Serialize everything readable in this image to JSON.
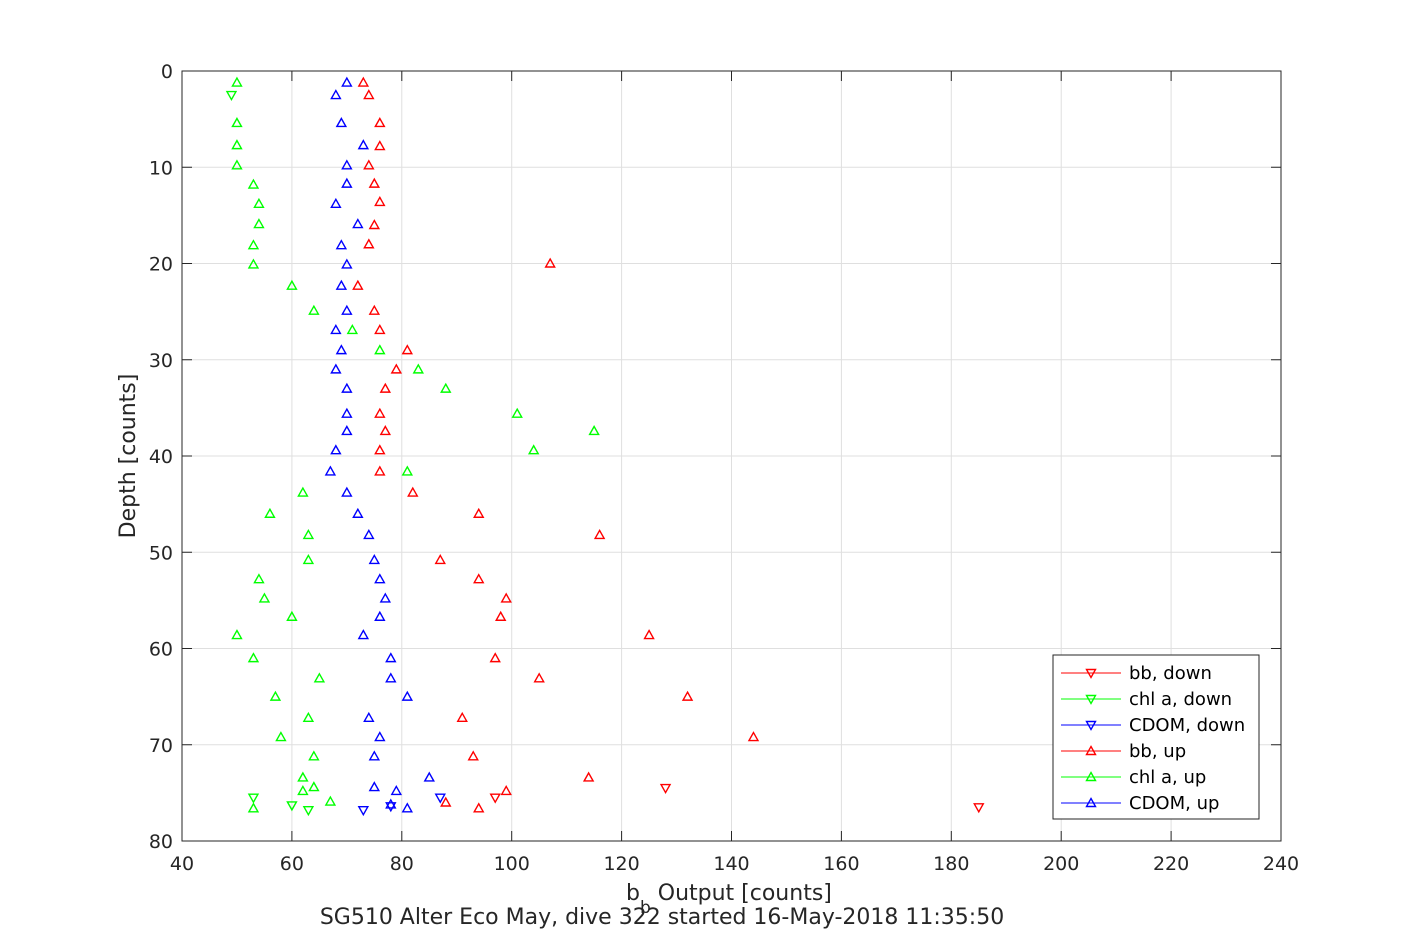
{
  "chart_data": {
    "type": "scatter",
    "xlabel_main": "b",
    "xlabel_sub": "b",
    "xlabel_rest": " Output [counts]",
    "ylabel": "Depth [counts]",
    "caption": "SG510 Alter Eco May, dive 322 started 16-May-2018 11:35:50",
    "xlim": [
      40,
      240
    ],
    "ylim": [
      0,
      80
    ],
    "y_reversed": true,
    "grid": true,
    "x_ticks": [
      40,
      60,
      80,
      100,
      120,
      140,
      160,
      180,
      200,
      220,
      240
    ],
    "y_ticks": [
      0,
      10,
      20,
      30,
      40,
      50,
      60,
      70,
      80
    ],
    "legend_position": "bottom-right",
    "series": [
      {
        "name": "bb, down",
        "color": "#ff0000",
        "marker": "triangle-down",
        "points": [
          [
            128,
            74.5
          ],
          [
            185,
            76.5
          ],
          [
            97,
            75.5
          ]
        ]
      },
      {
        "name": "chl a, down",
        "color": "#00ff00",
        "marker": "triangle-down",
        "points": [
          [
            49,
            2.5
          ],
          [
            53,
            75.5
          ],
          [
            60,
            76.3
          ],
          [
            63,
            76.8
          ]
        ]
      },
      {
        "name": "CDOM, down",
        "color": "#0000ff",
        "marker": "triangle-down",
        "points": [
          [
            87,
            75.5
          ],
          [
            78,
            76.4
          ],
          [
            73,
            76.8
          ]
        ]
      },
      {
        "name": "bb, up",
        "color": "#ff0000",
        "marker": "triangle-up",
        "points": [
          [
            73,
            1.2
          ],
          [
            74,
            2.5
          ],
          [
            76,
            5.4
          ],
          [
            76,
            7.8
          ],
          [
            74,
            9.8
          ],
          [
            75,
            11.7
          ],
          [
            76,
            13.6
          ],
          [
            75,
            16
          ],
          [
            74,
            18
          ],
          [
            107,
            20
          ],
          [
            72,
            22.3
          ],
          [
            75,
            24.9
          ],
          [
            76,
            26.9
          ],
          [
            81,
            29
          ],
          [
            79,
            31
          ],
          [
            77,
            33
          ],
          [
            76,
            35.6
          ],
          [
            77,
            37.4
          ],
          [
            76,
            39.4
          ],
          [
            76,
            41.6
          ],
          [
            82,
            43.8
          ],
          [
            94,
            46
          ],
          [
            116,
            48.2
          ],
          [
            87,
            50.8
          ],
          [
            94,
            52.8
          ],
          [
            99,
            54.8
          ],
          [
            98,
            56.7
          ],
          [
            125,
            58.6
          ],
          [
            97,
            61
          ],
          [
            105,
            63.1
          ],
          [
            132,
            65
          ],
          [
            91,
            67.2
          ],
          [
            144,
            69.2
          ],
          [
            93,
            71.2
          ],
          [
            114,
            73.4
          ],
          [
            99,
            74.8
          ],
          [
            88,
            76
          ],
          [
            94,
            76.6
          ]
        ]
      },
      {
        "name": "chl a, up",
        "color": "#00ff00",
        "marker": "triangle-up",
        "points": [
          [
            50,
            1.2
          ],
          [
            50,
            5.4
          ],
          [
            50,
            7.7
          ],
          [
            50,
            9.8
          ],
          [
            53,
            11.8
          ],
          [
            54,
            13.8
          ],
          [
            54,
            15.9
          ],
          [
            53,
            18.1
          ],
          [
            53,
            20.1
          ],
          [
            60,
            22.3
          ],
          [
            64,
            24.9
          ],
          [
            71,
            26.9
          ],
          [
            76,
            29
          ],
          [
            83,
            31
          ],
          [
            88,
            33
          ],
          [
            101,
            35.6
          ],
          [
            115,
            37.4
          ],
          [
            104,
            39.4
          ],
          [
            81,
            41.6
          ],
          [
            62,
            43.8
          ],
          [
            56,
            46
          ],
          [
            63,
            48.2
          ],
          [
            63,
            50.8
          ],
          [
            54,
            52.8
          ],
          [
            55,
            54.8
          ],
          [
            60,
            56.7
          ],
          [
            50,
            58.6
          ],
          [
            53,
            61
          ],
          [
            65,
            63.1
          ],
          [
            57,
            65
          ],
          [
            63,
            67.2
          ],
          [
            58,
            69.2
          ],
          [
            64,
            71.2
          ],
          [
            62,
            73.4
          ],
          [
            62,
            74.8
          ],
          [
            64,
            74.4
          ],
          [
            67,
            75.9
          ],
          [
            53,
            76.6
          ]
        ]
      },
      {
        "name": "CDOM, up",
        "color": "#0000ff",
        "marker": "triangle-up",
        "points": [
          [
            70,
            1.2
          ],
          [
            68,
            2.5
          ],
          [
            69,
            5.4
          ],
          [
            73,
            7.7
          ],
          [
            70,
            9.8
          ],
          [
            70,
            11.7
          ],
          [
            68,
            13.8
          ],
          [
            72,
            15.9
          ],
          [
            69,
            18.1
          ],
          [
            70,
            20.1
          ],
          [
            69,
            22.3
          ],
          [
            70,
            24.9
          ],
          [
            68,
            26.9
          ],
          [
            69,
            29
          ],
          [
            68,
            31
          ],
          [
            70,
            33
          ],
          [
            70,
            35.6
          ],
          [
            70,
            37.4
          ],
          [
            68,
            39.4
          ],
          [
            67,
            41.6
          ],
          [
            70,
            43.8
          ],
          [
            72,
            46
          ],
          [
            74,
            48.2
          ],
          [
            75,
            50.8
          ],
          [
            76,
            52.8
          ],
          [
            77,
            54.8
          ],
          [
            76,
            56.7
          ],
          [
            73,
            58.6
          ],
          [
            78,
            61
          ],
          [
            78,
            63.1
          ],
          [
            81,
            65
          ],
          [
            74,
            67.2
          ],
          [
            76,
            69.2
          ],
          [
            75,
            71.2
          ],
          [
            85,
            73.4
          ],
          [
            79,
            74.8
          ],
          [
            75,
            74.4
          ],
          [
            78,
            76.2
          ],
          [
            81,
            76.6
          ]
        ]
      }
    ]
  }
}
